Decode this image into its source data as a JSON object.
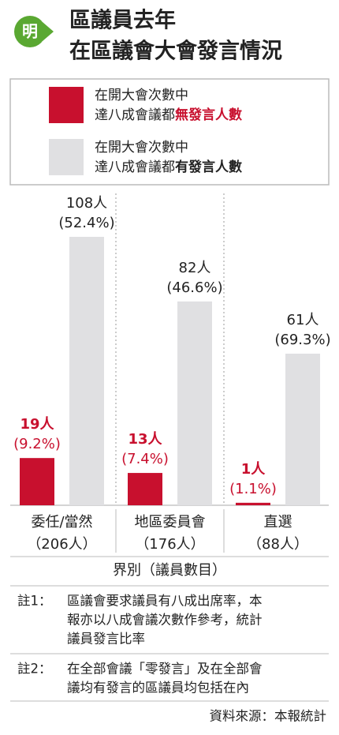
{
  "chart_data": {
    "type": "bar",
    "logo": "明",
    "title": [
      "區議員去年",
      "在區議會大會發言情況"
    ],
    "categories": [
      "委任/當然",
      "地區委員會",
      "直選"
    ],
    "category_counts": [
      206,
      176,
      88
    ],
    "category_count_labels": [
      "（206人）",
      "（176人）",
      "（88人）"
    ],
    "series": [
      {
        "name": [
          "在開大會次數中",
          "達八成會議都",
          "無發言人數"
        ],
        "color": "#c8102e",
        "values": [
          19,
          13,
          1
        ],
        "value_labels": [
          "19人",
          "13人",
          "1人"
        ],
        "percent": [
          9.2,
          7.4,
          1.1
        ],
        "percent_labels": [
          "(9.2%)",
          "(7.4%)",
          "(1.1%)"
        ]
      },
      {
        "name": [
          "在開大會次數中",
          "達八成會議都",
          "有發言人數"
        ],
        "color": "#e0e0e2",
        "values": [
          108,
          82,
          61
        ],
        "value_labels": [
          "108人",
          "82人",
          "61人"
        ],
        "percent": [
          52.4,
          46.6,
          69.3
        ],
        "percent_labels": [
          "(52.4%)",
          "(46.6%)",
          "(69.3%)"
        ]
      }
    ],
    "xlabel": "界別（議員數目）",
    "notes": [
      {
        "label": "註1：",
        "lines": [
          "區議會要求議員有八成出席率，本",
          "報亦以八成會議次數作參考，統計",
          "議員發言比率"
        ]
      },
      {
        "label": "註2：",
        "lines": [
          "在全部會議「零發言」及在全部會",
          "議均有發言的區議員均包括在內"
        ]
      }
    ],
    "source": "資料來源：本報統計"
  }
}
